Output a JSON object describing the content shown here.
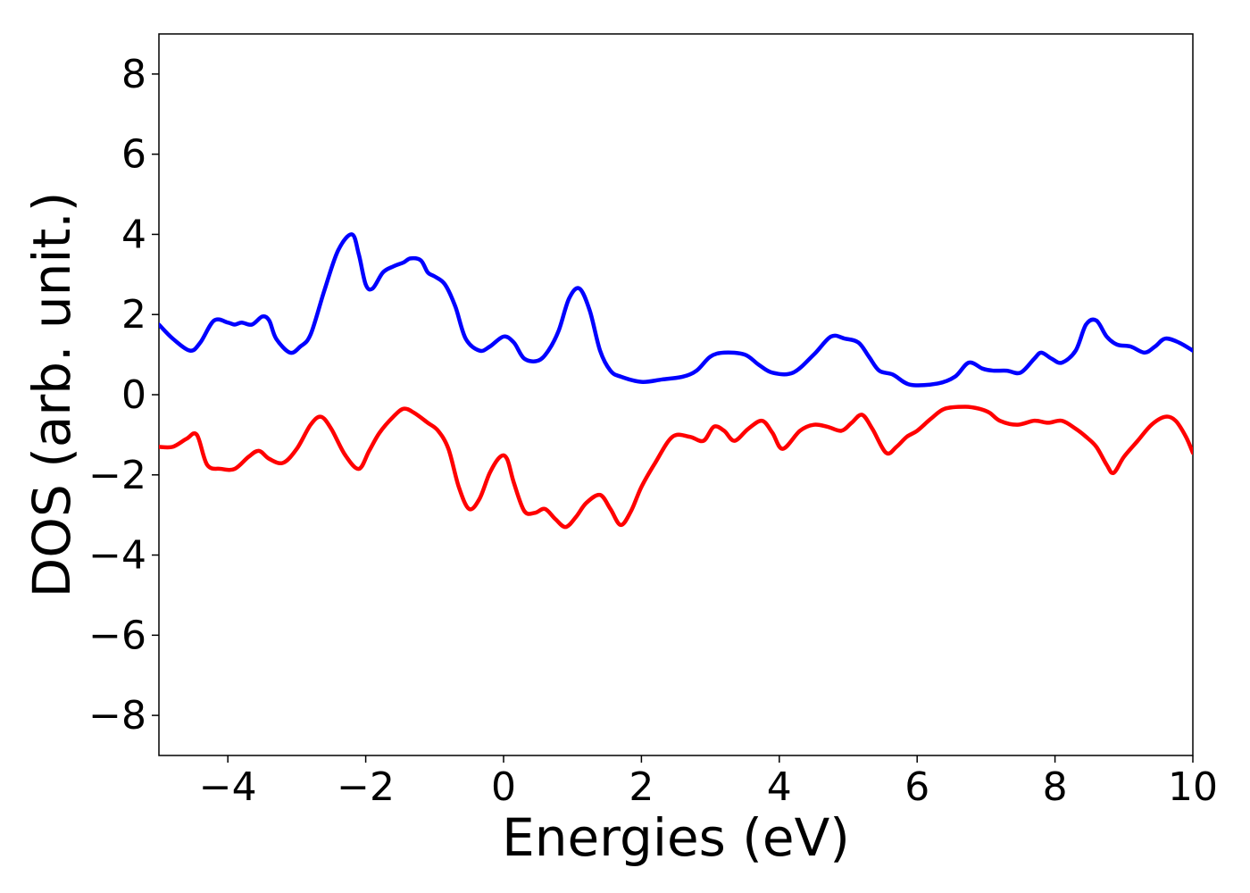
{
  "chart_data": {
    "type": "line",
    "xlabel": "Energies (eV)",
    "ylabel": "DOS (arb. unit.)",
    "xlim": [
      -5,
      10
    ],
    "ylim": [
      -9,
      9
    ],
    "grid": false,
    "x_ticks": [
      -4,
      -2,
      0,
      2,
      4,
      6,
      8,
      10
    ],
    "x_tick_labels": [
      "−4",
      "−2",
      "0",
      "2",
      "4",
      "6",
      "8",
      "10"
    ],
    "y_ticks": [
      -8,
      -6,
      -4,
      -2,
      0,
      2,
      4,
      6,
      8
    ],
    "y_tick_labels": [
      "−8",
      "−6",
      "−4",
      "−2",
      "0",
      "2",
      "4",
      "6",
      "8"
    ],
    "series": [
      {
        "color": "#0000ff",
        "x": [
          -5.0,
          -4.8,
          -4.55,
          -4.4,
          -4.2,
          -4.0,
          -3.9,
          -3.8,
          -3.65,
          -3.5,
          -3.4,
          -3.3,
          -3.1,
          -2.95,
          -2.8,
          -2.6,
          -2.4,
          -2.2,
          -2.1,
          -2.0,
          -1.9,
          -1.75,
          -1.6,
          -1.45,
          -1.35,
          -1.2,
          -1.1,
          -1.0,
          -0.85,
          -0.7,
          -0.55,
          -0.35,
          -0.2,
          0.0,
          0.15,
          0.3,
          0.5,
          0.65,
          0.8,
          0.95,
          1.1,
          1.25,
          1.4,
          1.55,
          1.7,
          2.0,
          2.3,
          2.6,
          2.8,
          3.0,
          3.2,
          3.5,
          3.7,
          3.9,
          4.2,
          4.5,
          4.75,
          4.95,
          5.15,
          5.3,
          5.45,
          5.65,
          5.9,
          6.3,
          6.55,
          6.75,
          6.95,
          7.1,
          7.3,
          7.5,
          7.7,
          7.8,
          7.95,
          8.1,
          8.3,
          8.45,
          8.6,
          8.75,
          8.9,
          9.1,
          9.3,
          9.45,
          9.6,
          9.8,
          10.0
        ],
        "y": [
          1.75,
          1.4,
          1.1,
          1.3,
          1.85,
          1.8,
          1.75,
          1.8,
          1.75,
          1.95,
          1.85,
          1.4,
          1.05,
          1.2,
          1.5,
          2.6,
          3.6,
          4.0,
          3.5,
          2.75,
          2.65,
          3.05,
          3.2,
          3.3,
          3.4,
          3.35,
          3.05,
          2.95,
          2.75,
          2.2,
          1.4,
          1.1,
          1.2,
          1.45,
          1.3,
          0.9,
          0.85,
          1.1,
          1.6,
          2.4,
          2.65,
          2.1,
          1.1,
          0.6,
          0.45,
          0.32,
          0.38,
          0.45,
          0.6,
          0.95,
          1.05,
          1.0,
          0.75,
          0.55,
          0.55,
          1.0,
          1.45,
          1.4,
          1.3,
          0.95,
          0.6,
          0.5,
          0.25,
          0.28,
          0.45,
          0.8,
          0.65,
          0.6,
          0.6,
          0.55,
          0.9,
          1.05,
          0.9,
          0.8,
          1.1,
          1.75,
          1.85,
          1.45,
          1.25,
          1.2,
          1.05,
          1.2,
          1.4,
          1.3,
          1.1
        ]
      },
      {
        "color": "#ff0000",
        "x": [
          -5.0,
          -4.8,
          -4.6,
          -4.45,
          -4.3,
          -4.1,
          -3.9,
          -3.7,
          -3.55,
          -3.4,
          -3.2,
          -3.0,
          -2.8,
          -2.65,
          -2.5,
          -2.3,
          -2.1,
          -1.95,
          -1.8,
          -1.6,
          -1.45,
          -1.3,
          -1.1,
          -0.95,
          -0.8,
          -0.65,
          -0.5,
          -0.35,
          -0.2,
          -0.05,
          0.05,
          0.15,
          0.3,
          0.45,
          0.6,
          0.75,
          0.9,
          1.05,
          1.2,
          1.4,
          1.55,
          1.7,
          1.85,
          2.0,
          2.2,
          2.45,
          2.7,
          2.9,
          3.05,
          3.2,
          3.35,
          3.55,
          3.75,
          3.9,
          4.05,
          4.3,
          4.5,
          4.7,
          4.9,
          5.05,
          5.2,
          5.35,
          5.55,
          5.7,
          5.85,
          6.0,
          6.2,
          6.4,
          6.7,
          6.9,
          7.05,
          7.2,
          7.45,
          7.7,
          7.9,
          8.1,
          8.3,
          8.45,
          8.6,
          8.75,
          8.85,
          9.0,
          9.2,
          9.4,
          9.6,
          9.75,
          9.9,
          10.0
        ],
        "y": [
          -1.3,
          -1.3,
          -1.1,
          -1.0,
          -1.75,
          -1.85,
          -1.85,
          -1.55,
          -1.4,
          -1.6,
          -1.7,
          -1.35,
          -0.75,
          -0.55,
          -0.85,
          -1.5,
          -1.85,
          -1.4,
          -0.95,
          -0.55,
          -0.35,
          -0.45,
          -0.7,
          -0.9,
          -1.35,
          -2.3,
          -2.85,
          -2.6,
          -1.95,
          -1.55,
          -1.6,
          -2.2,
          -2.9,
          -2.95,
          -2.85,
          -3.1,
          -3.3,
          -3.05,
          -2.7,
          -2.5,
          -2.85,
          -3.25,
          -2.9,
          -2.3,
          -1.7,
          -1.05,
          -1.05,
          -1.15,
          -0.8,
          -0.9,
          -1.15,
          -0.85,
          -0.65,
          -0.95,
          -1.35,
          -0.9,
          -0.75,
          -0.8,
          -0.9,
          -0.7,
          -0.5,
          -0.85,
          -1.45,
          -1.3,
          -1.05,
          -0.9,
          -0.6,
          -0.35,
          -0.3,
          -0.35,
          -0.45,
          -0.65,
          -0.75,
          -0.65,
          -0.7,
          -0.65,
          -0.85,
          -1.05,
          -1.3,
          -1.75,
          -1.95,
          -1.55,
          -1.15,
          -0.75,
          -0.55,
          -0.65,
          -1.05,
          -1.45
        ]
      }
    ]
  }
}
